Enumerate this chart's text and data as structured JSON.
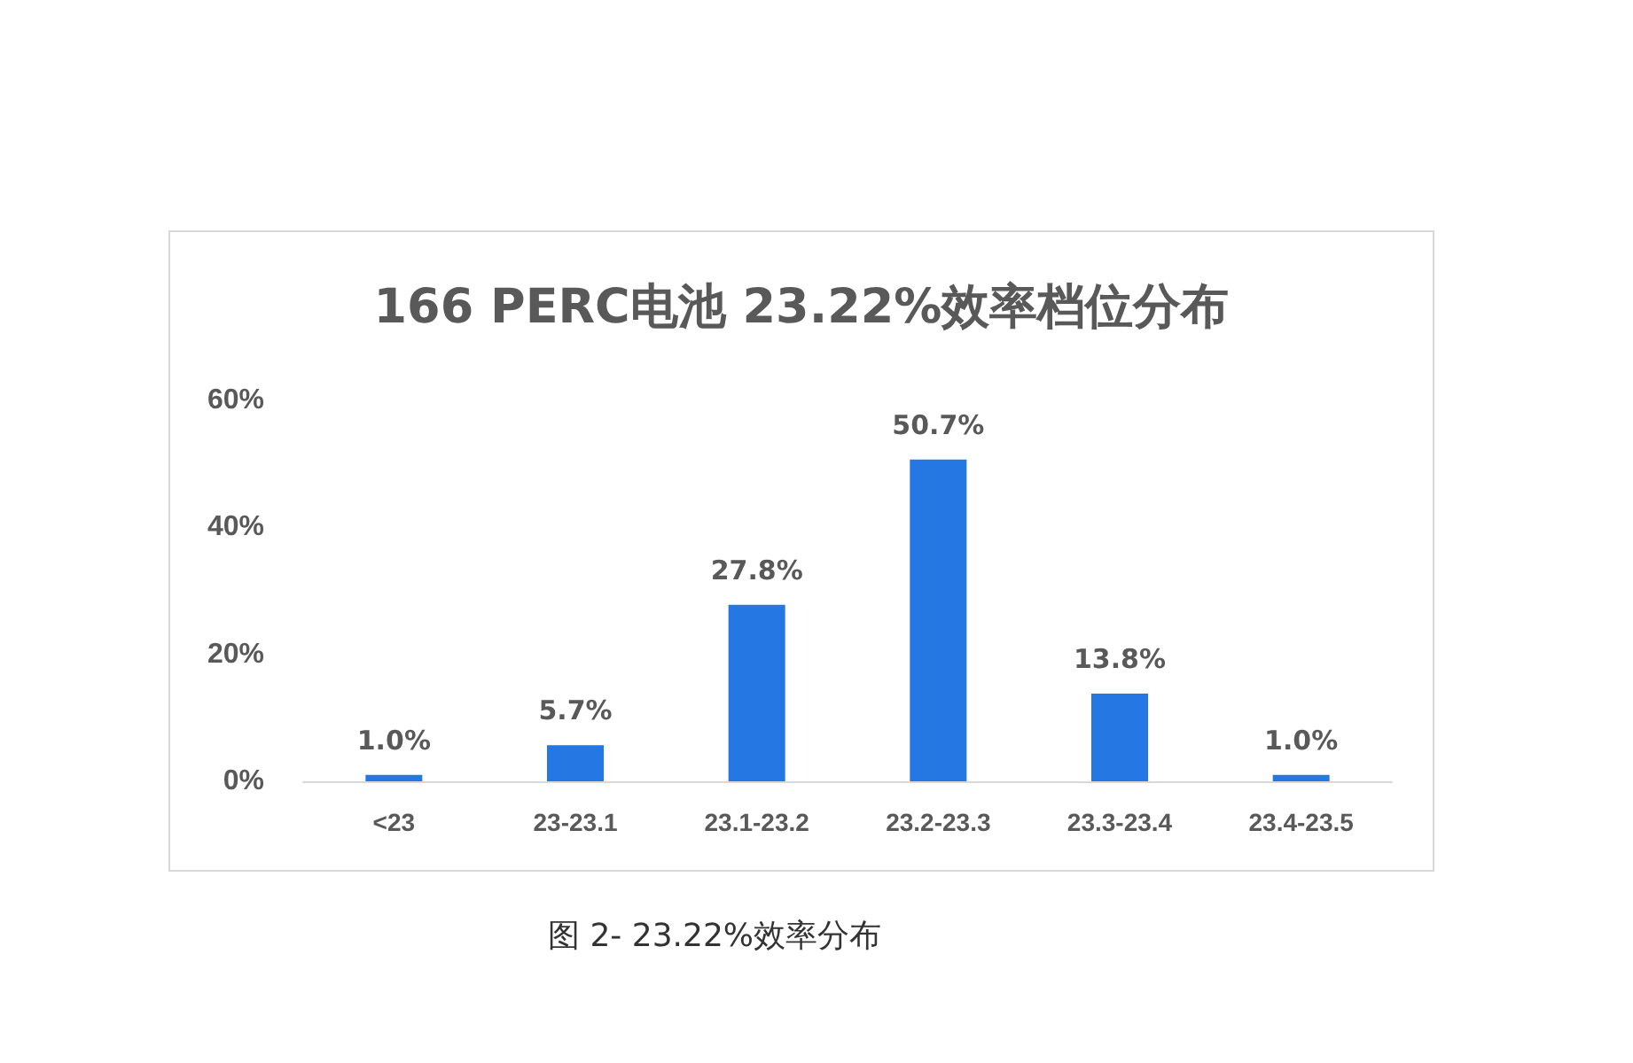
{
  "chart_data": {
    "type": "bar",
    "title": "166 PERC电池 23.22%效率档位分布",
    "categories": [
      "<23",
      "23-23.1",
      "23.1-23.2",
      "23.2-23.3",
      "23.3-23.4",
      "23.4-23.5"
    ],
    "values": [
      1.0,
      5.7,
      27.8,
      50.7,
      13.8,
      1.0
    ],
    "value_labels": [
      "1.0%",
      "5.7%",
      "27.8%",
      "50.7%",
      "13.8%",
      "1.0%"
    ],
    "color": "#2577e3",
    "ylim": [
      0,
      60
    ],
    "yticks": [
      {
        "value": 0,
        "label": "0%"
      },
      {
        "value": 20,
        "label": "20%"
      },
      {
        "value": 40,
        "label": "40%"
      },
      {
        "value": 60,
        "label": "60%"
      }
    ],
    "grid": false,
    "annotations": [
      "图 2- 23.22%效率分布"
    ]
  }
}
